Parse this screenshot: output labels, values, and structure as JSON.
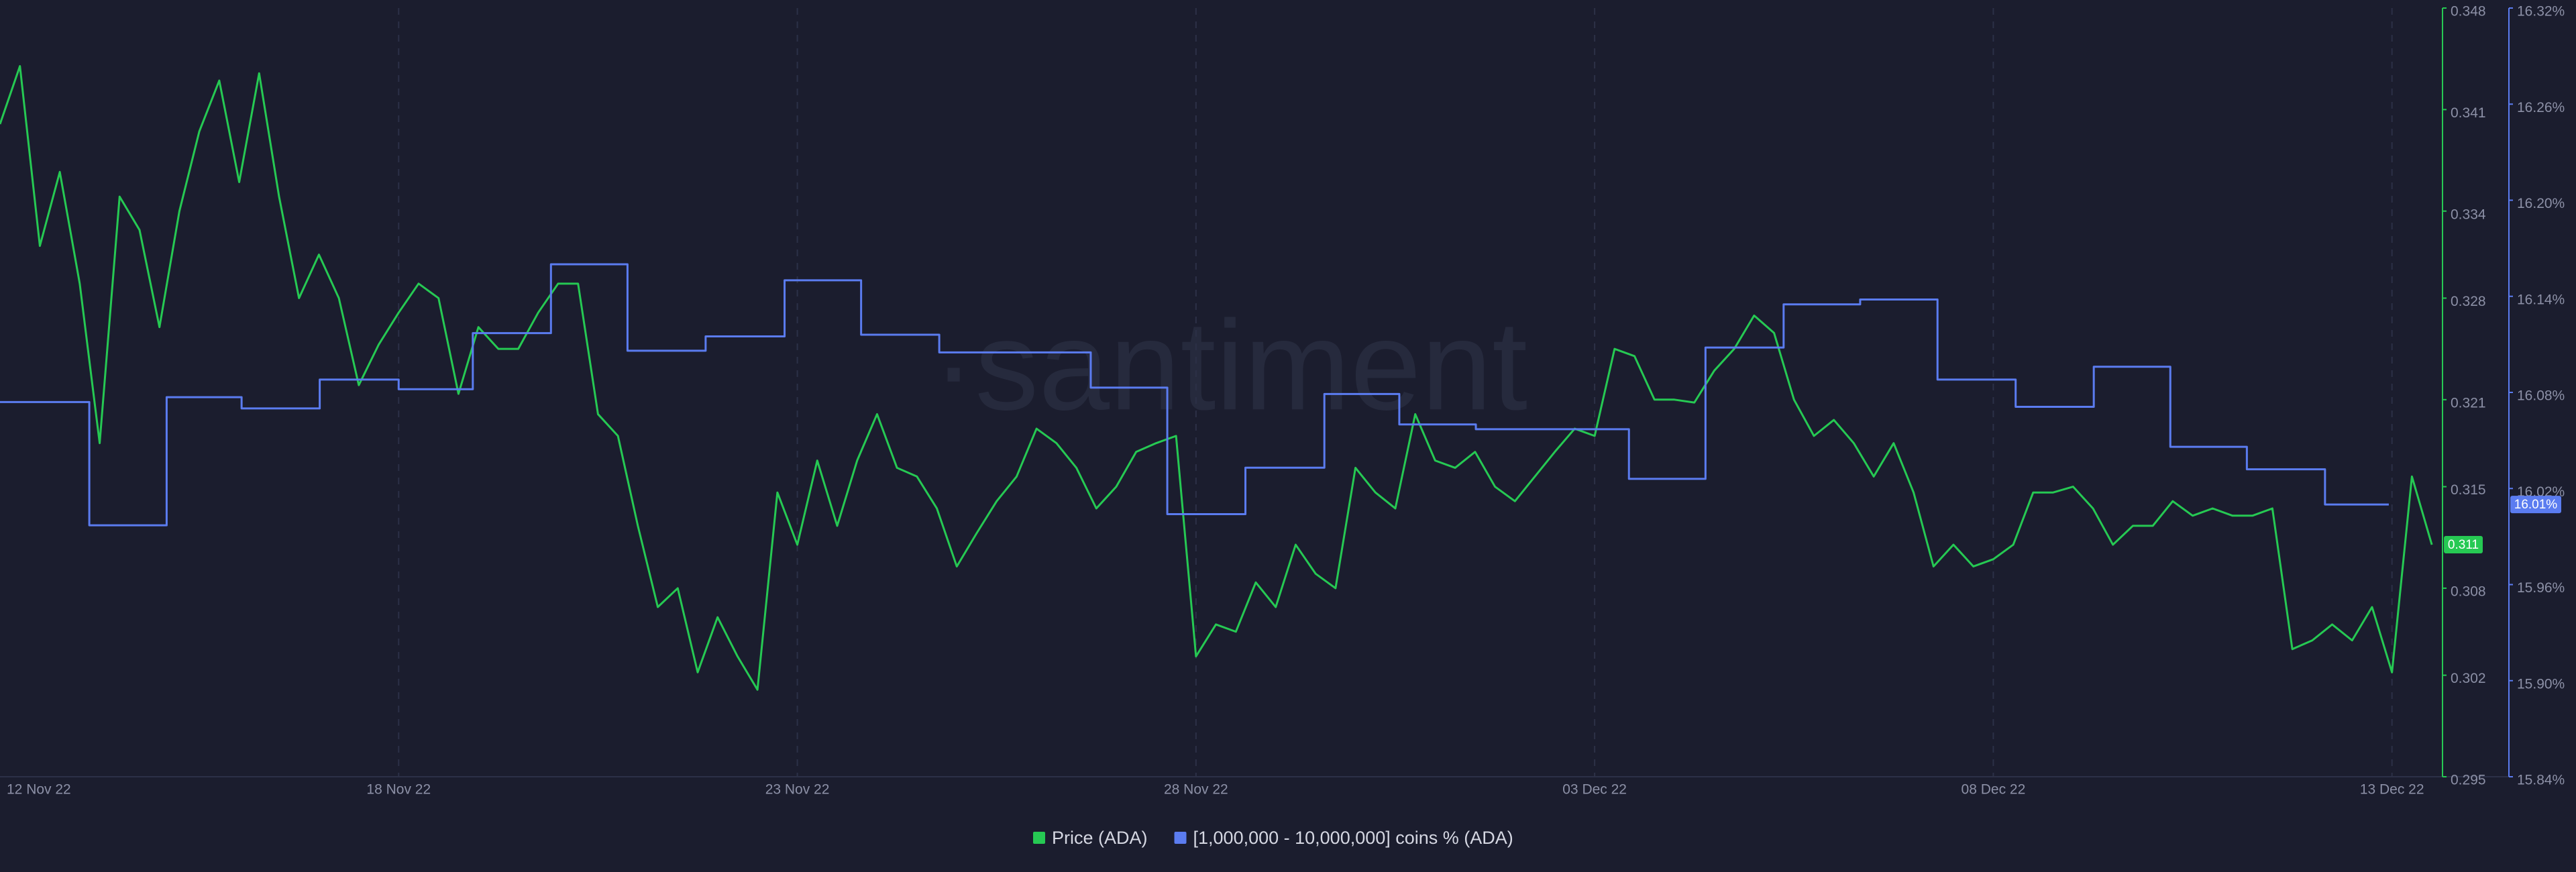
{
  "chart_data": {
    "type": "line",
    "watermark": "·santiment",
    "xlim": [
      1,
      31.6
    ],
    "xticks": [
      {
        "value": 0,
        "label": "12 Nov 22"
      },
      {
        "value": 6,
        "label": "18 Nov 22"
      },
      {
        "value": 11,
        "label": "23 Nov 22"
      },
      {
        "value": 16,
        "label": "28 Nov 22"
      },
      {
        "value": 21,
        "label": "03 Dec 22"
      },
      {
        "value": 26,
        "label": "08 Dec 22"
      },
      {
        "value": 31,
        "label": "13 Dec 22"
      }
    ],
    "ylim": [
      0.295,
      0.348
    ],
    "yticks": [
      0.295,
      0.302,
      0.308,
      0.315,
      0.321,
      0.328,
      0.334,
      0.341,
      0.348
    ],
    "y2lim": [
      15.84,
      16.32
    ],
    "y2ticks": [
      {
        "value": 15.84,
        "label": "15.84%"
      },
      {
        "value": 15.9,
        "label": "15.90%"
      },
      {
        "value": 15.96,
        "label": "15.96%"
      },
      {
        "value": 16.02,
        "label": "16.02%"
      },
      {
        "value": 16.08,
        "label": "16.08%"
      },
      {
        "value": 16.14,
        "label": "16.14%"
      },
      {
        "value": 16.2,
        "label": "16.20%"
      },
      {
        "value": 16.26,
        "label": "16.26%"
      },
      {
        "value": 16.32,
        "label": "16.32%"
      }
    ],
    "grid": true,
    "legend": "bottom",
    "series": [
      {
        "name": "Price (ADA)",
        "color": "#26c953",
        "axis": "y",
        "current_label": "0.311",
        "x": [
          1,
          1.25,
          1.5,
          1.75,
          2,
          2.25,
          2.5,
          2.75,
          3,
          3.25,
          3.5,
          3.75,
          4,
          4.25,
          4.5,
          4.75,
          5,
          5.25,
          5.5,
          5.75,
          6,
          6.25,
          6.5,
          6.75,
          7,
          7.25,
          7.5,
          7.75,
          8,
          8.25,
          8.5,
          8.75,
          9,
          9.25,
          9.5,
          9.75,
          10,
          10.25,
          10.5,
          10.75,
          11,
          11.25,
          11.5,
          11.75,
          12,
          12.25,
          12.5,
          12.75,
          13,
          13.25,
          13.5,
          13.75,
          14,
          14.25,
          14.5,
          14.75,
          15,
          15.25,
          15.5,
          15.75,
          16,
          16.25,
          16.5,
          16.75,
          17,
          17.25,
          17.5,
          17.75,
          18,
          18.25,
          18.5,
          18.75,
          19,
          19.25,
          19.5,
          19.75,
          20,
          20.25,
          20.5,
          20.75,
          21,
          21.25,
          21.5,
          21.75,
          22,
          22.25,
          22.5,
          22.75,
          23,
          23.25,
          23.5,
          23.75,
          24,
          24.25,
          24.5,
          24.75,
          25,
          25.25,
          25.5,
          25.75,
          26,
          26.25,
          26.5,
          26.75,
          27,
          27.25,
          27.5,
          27.75,
          28,
          28.25,
          28.5,
          28.75,
          29,
          29.25,
          29.5,
          29.75,
          30,
          30.25,
          30.5,
          30.75,
          31,
          31.25,
          31.5
        ],
        "values": [
          0.34,
          0.344,
          0.3316,
          0.3367,
          0.329,
          0.318,
          0.335,
          0.3327,
          0.326,
          0.334,
          0.3395,
          0.343,
          0.336,
          0.3435,
          0.335,
          0.328,
          0.331,
          0.328,
          0.322,
          0.3248,
          0.327,
          0.329,
          0.328,
          0.3214,
          0.326,
          0.3245,
          0.3245,
          0.327,
          0.329,
          0.329,
          0.32,
          0.3185,
          0.3123,
          0.3067,
          0.308,
          0.3022,
          0.306,
          0.3033,
          0.301,
          0.3146,
          0.311,
          0.3168,
          0.3123,
          0.3168,
          0.32,
          0.3163,
          0.3157,
          0.3135,
          0.3095,
          0.3118,
          0.314,
          0.3157,
          0.319,
          0.318,
          0.3163,
          0.3135,
          0.315,
          0.3174,
          0.318,
          0.3185,
          0.3033,
          0.3055,
          0.305,
          0.3084,
          0.3067,
          0.311,
          0.309,
          0.308,
          0.3163,
          0.3146,
          0.3135,
          0.32,
          0.3168,
          0.3163,
          0.3174,
          0.315,
          0.314,
          0.3157,
          0.3174,
          0.319,
          0.3185,
          0.3245,
          0.324,
          0.321,
          0.321,
          0.3208,
          0.323,
          0.3245,
          0.3268,
          0.3256,
          0.321,
          0.3185,
          0.3196,
          0.318,
          0.3157,
          0.318,
          0.3146,
          0.3095,
          0.311,
          0.3095,
          0.31,
          0.311,
          0.3146,
          0.3146,
          0.315,
          0.3135,
          0.311,
          0.3123,
          0.3123,
          0.314,
          0.313,
          0.3135,
          0.313,
          0.313,
          0.3135,
          0.3038,
          0.3044,
          0.3055,
          0.3044,
          0.3067,
          0.3022,
          0.3157,
          0.311
        ]
      },
      {
        "name": "[1,000,000 - 10,000,000] coins % (ADA)",
        "color": "#5b7cf0",
        "axis": "y2",
        "step": true,
        "current_label": "16.01%",
        "x": [
          1,
          2.12,
          3.09,
          4.03,
          5.01,
          6,
          6.93,
          7.91,
          8.87,
          9.85,
          10.84,
          11.8,
          12.78,
          14.68,
          15.64,
          16.62,
          17.61,
          18.55,
          19.51,
          21.43,
          22.39,
          23.37,
          24.33,
          25.3,
          26.28,
          27.26,
          28.22,
          29.18,
          30.16,
          30.96
        ],
        "values": [
          16.074,
          15.997,
          16.077,
          16.07,
          16.088,
          16.082,
          16.117,
          16.16,
          16.106,
          16.115,
          16.15,
          16.116,
          16.105,
          16.083,
          16.004,
          16.033,
          16.079,
          16.06,
          16.057,
          16.026,
          16.108,
          16.135,
          16.138,
          16.088,
          16.071,
          16.096,
          16.046,
          16.032,
          16.01,
          16.01
        ]
      }
    ]
  }
}
